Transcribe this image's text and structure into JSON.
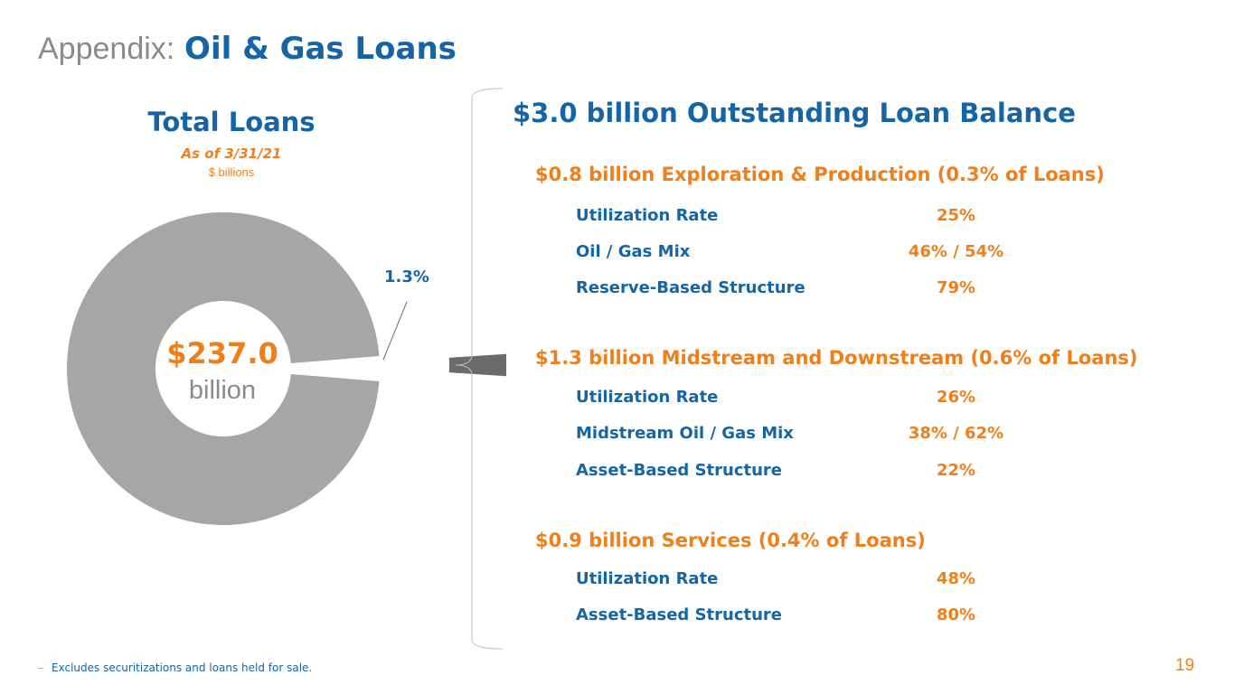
{
  "header": {
    "title_prefix": "Appendix:",
    "title_main": "Oil & Gas Loans"
  },
  "chart_data": {
    "type": "pie",
    "title": "Total Loans",
    "subtitle": "As of 3/31/21",
    "units": "$ billions",
    "center_value": "$237.0",
    "center_unit": "billion",
    "slices": [
      {
        "value": 98.7
      },
      {
        "label": "1.3%",
        "value": 1.3
      }
    ],
    "colors": [
      "#a6a6a6",
      "#6b6b6b"
    ]
  },
  "detail": {
    "headline": "$3.0 billion Outstanding Loan Balance",
    "segments": [
      {
        "title": "$0.8 billion Exploration & Production (0.3% of Loans)",
        "rows": [
          {
            "label": "Utilization Rate",
            "value": "25%"
          },
          {
            "label": "Oil / Gas Mix",
            "value": "46% / 54%"
          },
          {
            "label": "Reserve-Based Structure",
            "value": "79%"
          }
        ]
      },
      {
        "title": "$1.3 billion Midstream and Downstream (0.6% of Loans)",
        "rows": [
          {
            "label": "Utilization Rate",
            "value": "26%"
          },
          {
            "label": "Midstream Oil / Gas Mix",
            "value": "38% / 62%"
          },
          {
            "label": "Asset-Based Structure",
            "value": "22%"
          }
        ]
      },
      {
        "title": "$0.9 billion Services (0.4% of Loans)",
        "rows": [
          {
            "label": "Utilization Rate",
            "value": "48%"
          },
          {
            "label": "Asset-Based Structure",
            "value": "80%"
          }
        ]
      }
    ]
  },
  "footer": {
    "dash": "–",
    "footnote": "Excludes securitizations and loans held for sale.",
    "page_number": "19"
  },
  "colors": {
    "blue": "#1565a6",
    "orange": "#f07f1a",
    "gray": "#8a8a8a"
  }
}
